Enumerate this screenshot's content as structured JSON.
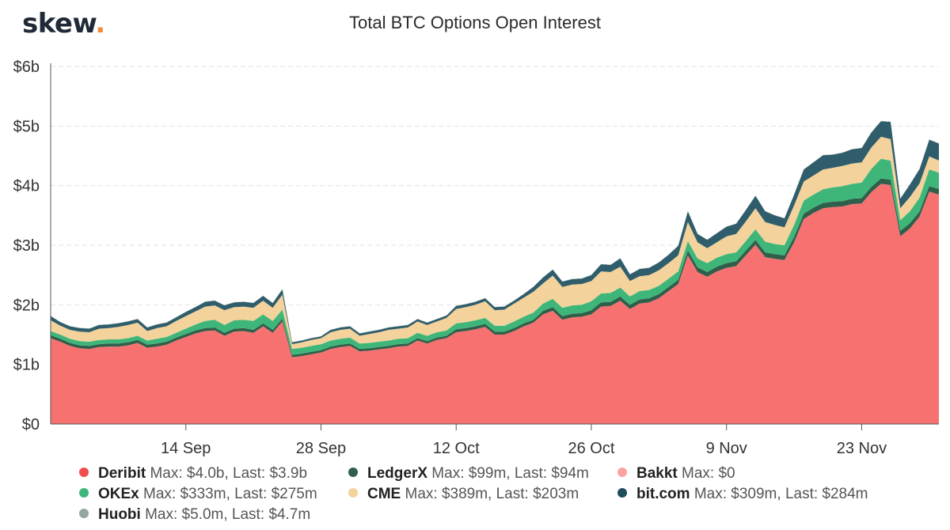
{
  "logo": {
    "text": "skew",
    "dot": "."
  },
  "chart_data": {
    "type": "area",
    "stacked": true,
    "title": "Total BTC Options Open Interest",
    "xlabel": "",
    "ylabel": "",
    "ylim": [
      0,
      6
    ],
    "y_unit": "$b",
    "y_ticks": [
      {
        "value": 0,
        "label": "$0"
      },
      {
        "value": 1,
        "label": "$1b"
      },
      {
        "value": 2,
        "label": "$2b"
      },
      {
        "value": 3,
        "label": "$3b"
      },
      {
        "value": 4,
        "label": "$4b"
      },
      {
        "value": 5,
        "label": "$5b"
      },
      {
        "value": 6,
        "label": "$6b"
      }
    ],
    "x_range": [
      "2020-08-31",
      "2020-12-01"
    ],
    "x_ticks": [
      {
        "date": "2020-09-14",
        "label": "14 Sep"
      },
      {
        "date": "2020-09-28",
        "label": "28 Sep"
      },
      {
        "date": "2020-10-12",
        "label": "12 Oct"
      },
      {
        "date": "2020-10-26",
        "label": "26 Oct"
      },
      {
        "date": "2020-11-09",
        "label": "9 Nov"
      },
      {
        "date": "2020-11-23",
        "label": "23 Nov"
      }
    ],
    "grid": {
      "horizontal": true,
      "vertical": false
    },
    "legend_position": "bottom",
    "x": [
      "2020-08-31",
      "2020-09-01",
      "2020-09-02",
      "2020-09-03",
      "2020-09-04",
      "2020-09-05",
      "2020-09-06",
      "2020-09-07",
      "2020-09-08",
      "2020-09-09",
      "2020-09-10",
      "2020-09-11",
      "2020-09-12",
      "2020-09-13",
      "2020-09-14",
      "2020-09-15",
      "2020-09-16",
      "2020-09-17",
      "2020-09-18",
      "2020-09-19",
      "2020-09-20",
      "2020-09-21",
      "2020-09-22",
      "2020-09-23",
      "2020-09-24",
      "2020-09-25",
      "2020-09-26",
      "2020-09-27",
      "2020-09-28",
      "2020-09-29",
      "2020-09-30",
      "2020-10-01",
      "2020-10-02",
      "2020-10-03",
      "2020-10-04",
      "2020-10-05",
      "2020-10-06",
      "2020-10-07",
      "2020-10-08",
      "2020-10-09",
      "2020-10-10",
      "2020-10-11",
      "2020-10-12",
      "2020-10-13",
      "2020-10-14",
      "2020-10-15",
      "2020-10-16",
      "2020-10-17",
      "2020-10-18",
      "2020-10-19",
      "2020-10-20",
      "2020-10-21",
      "2020-10-22",
      "2020-10-23",
      "2020-10-24",
      "2020-10-25",
      "2020-10-26",
      "2020-10-27",
      "2020-10-28",
      "2020-10-29",
      "2020-10-30",
      "2020-10-31",
      "2020-11-01",
      "2020-11-02",
      "2020-11-03",
      "2020-11-04",
      "2020-11-05",
      "2020-11-06",
      "2020-11-07",
      "2020-11-08",
      "2020-11-09",
      "2020-11-10",
      "2020-11-11",
      "2020-11-12",
      "2020-11-13",
      "2020-11-14",
      "2020-11-15",
      "2020-11-16",
      "2020-11-17",
      "2020-11-18",
      "2020-11-19",
      "2020-11-20",
      "2020-11-21",
      "2020-11-22",
      "2020-11-23",
      "2020-11-24",
      "2020-11-25",
      "2020-11-26",
      "2020-11-27",
      "2020-11-28",
      "2020-11-29",
      "2020-11-30",
      "2020-12-01"
    ],
    "series": [
      {
        "name": "Deribit",
        "color": "#f87171",
        "values": [
          1.44,
          1.38,
          1.31,
          1.27,
          1.26,
          1.29,
          1.3,
          1.3,
          1.32,
          1.36,
          1.28,
          1.3,
          1.33,
          1.4,
          1.46,
          1.52,
          1.56,
          1.57,
          1.48,
          1.55,
          1.56,
          1.53,
          1.64,
          1.53,
          1.72,
          1.12,
          1.14,
          1.17,
          1.2,
          1.26,
          1.29,
          1.31,
          1.22,
          1.23,
          1.25,
          1.27,
          1.3,
          1.31,
          1.4,
          1.35,
          1.41,
          1.44,
          1.54,
          1.56,
          1.59,
          1.63,
          1.5,
          1.5,
          1.56,
          1.64,
          1.7,
          1.84,
          1.9,
          1.75,
          1.79,
          1.8,
          1.84,
          1.97,
          1.98,
          2.07,
          1.93,
          2.02,
          2.04,
          2.11,
          2.23,
          2.35,
          2.83,
          2.55,
          2.47,
          2.56,
          2.62,
          2.65,
          2.83,
          3.01,
          2.8,
          2.77,
          2.75,
          3.05,
          3.44,
          3.54,
          3.62,
          3.64,
          3.65,
          3.69,
          3.7,
          3.89,
          4.03,
          4.01,
          3.15,
          3.28,
          3.48,
          3.9,
          3.85
        ]
      },
      {
        "name": "LedgerX",
        "color": "#2f5f4a",
        "values": [
          0.05,
          0.05,
          0.05,
          0.05,
          0.05,
          0.05,
          0.05,
          0.05,
          0.05,
          0.05,
          0.05,
          0.05,
          0.05,
          0.05,
          0.05,
          0.05,
          0.05,
          0.05,
          0.05,
          0.05,
          0.05,
          0.05,
          0.05,
          0.05,
          0.05,
          0.04,
          0.04,
          0.04,
          0.04,
          0.04,
          0.04,
          0.04,
          0.04,
          0.04,
          0.04,
          0.04,
          0.04,
          0.04,
          0.04,
          0.04,
          0.04,
          0.04,
          0.05,
          0.05,
          0.05,
          0.05,
          0.05,
          0.05,
          0.05,
          0.05,
          0.05,
          0.06,
          0.06,
          0.06,
          0.06,
          0.06,
          0.07,
          0.07,
          0.07,
          0.07,
          0.07,
          0.07,
          0.07,
          0.07,
          0.07,
          0.07,
          0.08,
          0.08,
          0.08,
          0.08,
          0.08,
          0.08,
          0.08,
          0.08,
          0.08,
          0.08,
          0.08,
          0.09,
          0.09,
          0.09,
          0.09,
          0.09,
          0.09,
          0.09,
          0.09,
          0.09,
          0.09,
          0.09,
          0.09,
          0.09,
          0.09,
          0.09,
          0.094
        ]
      },
      {
        "name": "Bakkt",
        "color": "#f9a3a3",
        "values": [
          0,
          0,
          0,
          0,
          0,
          0,
          0,
          0,
          0,
          0,
          0,
          0,
          0,
          0,
          0,
          0,
          0,
          0,
          0,
          0,
          0,
          0,
          0,
          0,
          0,
          0,
          0,
          0,
          0,
          0,
          0,
          0,
          0,
          0,
          0,
          0,
          0,
          0,
          0,
          0,
          0,
          0,
          0,
          0,
          0,
          0,
          0,
          0,
          0,
          0,
          0,
          0,
          0,
          0,
          0,
          0,
          0,
          0,
          0,
          0,
          0,
          0,
          0,
          0,
          0,
          0,
          0,
          0,
          0,
          0,
          0,
          0,
          0,
          0,
          0,
          0,
          0,
          0,
          0,
          0,
          0,
          0,
          0,
          0,
          0,
          0,
          0,
          0,
          0,
          0,
          0,
          0,
          0
        ]
      },
      {
        "name": "OKEx",
        "color": "#3eb67a",
        "values": [
          0.07,
          0.07,
          0.07,
          0.07,
          0.07,
          0.07,
          0.07,
          0.07,
          0.07,
          0.07,
          0.07,
          0.08,
          0.08,
          0.08,
          0.09,
          0.1,
          0.12,
          0.13,
          0.13,
          0.14,
          0.14,
          0.15,
          0.15,
          0.15,
          0.15,
          0.1,
          0.1,
          0.1,
          0.1,
          0.1,
          0.1,
          0.1,
          0.09,
          0.09,
          0.09,
          0.09,
          0.09,
          0.09,
          0.09,
          0.09,
          0.09,
          0.09,
          0.1,
          0.1,
          0.1,
          0.1,
          0.1,
          0.1,
          0.11,
          0.11,
          0.12,
          0.12,
          0.14,
          0.14,
          0.14,
          0.14,
          0.15,
          0.15,
          0.15,
          0.15,
          0.14,
          0.14,
          0.14,
          0.14,
          0.14,
          0.14,
          0.16,
          0.15,
          0.15,
          0.15,
          0.15,
          0.15,
          0.16,
          0.18,
          0.18,
          0.17,
          0.17,
          0.2,
          0.22,
          0.22,
          0.23,
          0.24,
          0.25,
          0.25,
          0.26,
          0.3,
          0.33,
          0.32,
          0.18,
          0.2,
          0.23,
          0.28,
          0.275
        ]
      },
      {
        "name": "CME",
        "color": "#f3d29b",
        "values": [
          0.18,
          0.15,
          0.15,
          0.16,
          0.16,
          0.19,
          0.19,
          0.21,
          0.22,
          0.22,
          0.16,
          0.18,
          0.18,
          0.2,
          0.21,
          0.22,
          0.24,
          0.24,
          0.25,
          0.22,
          0.22,
          0.22,
          0.23,
          0.22,
          0.25,
          0.08,
          0.09,
          0.1,
          0.1,
          0.14,
          0.15,
          0.15,
          0.13,
          0.15,
          0.16,
          0.18,
          0.17,
          0.18,
          0.19,
          0.18,
          0.18,
          0.21,
          0.24,
          0.25,
          0.26,
          0.28,
          0.26,
          0.27,
          0.3,
          0.32,
          0.35,
          0.34,
          0.39,
          0.35,
          0.35,
          0.35,
          0.34,
          0.37,
          0.35,
          0.35,
          0.26,
          0.25,
          0.25,
          0.26,
          0.26,
          0.27,
          0.32,
          0.27,
          0.25,
          0.26,
          0.3,
          0.31,
          0.33,
          0.35,
          0.33,
          0.32,
          0.3,
          0.33,
          0.32,
          0.32,
          0.33,
          0.33,
          0.34,
          0.34,
          0.34,
          0.36,
          0.37,
          0.36,
          0.2,
          0.24,
          0.24,
          0.22,
          0.203
        ]
      },
      {
        "name": "bit.com",
        "color": "#2f5d6b",
        "values": [
          0.07,
          0.06,
          0.06,
          0.06,
          0.06,
          0.06,
          0.06,
          0.06,
          0.06,
          0.06,
          0.06,
          0.06,
          0.06,
          0.06,
          0.07,
          0.07,
          0.08,
          0.08,
          0.08,
          0.08,
          0.08,
          0.08,
          0.08,
          0.08,
          0.09,
          0.03,
          0.03,
          0.03,
          0.03,
          0.04,
          0.04,
          0.04,
          0.04,
          0.04,
          0.04,
          0.04,
          0.04,
          0.04,
          0.04,
          0.04,
          0.04,
          0.04,
          0.05,
          0.05,
          0.05,
          0.05,
          0.05,
          0.05,
          0.05,
          0.06,
          0.08,
          0.1,
          0.1,
          0.09,
          0.09,
          0.09,
          0.1,
          0.12,
          0.12,
          0.14,
          0.11,
          0.12,
          0.12,
          0.13,
          0.14,
          0.16,
          0.18,
          0.14,
          0.14,
          0.15,
          0.16,
          0.17,
          0.19,
          0.21,
          0.18,
          0.16,
          0.15,
          0.18,
          0.2,
          0.22,
          0.24,
          0.22,
          0.22,
          0.24,
          0.24,
          0.25,
          0.26,
          0.29,
          0.16,
          0.21,
          0.24,
          0.28,
          0.284
        ]
      },
      {
        "name": "Huobi",
        "color": "#95a5a0",
        "values": [
          0.004,
          0.004,
          0.004,
          0.004,
          0.004,
          0.004,
          0.004,
          0.004,
          0.004,
          0.004,
          0.004,
          0.004,
          0.004,
          0.004,
          0.004,
          0.004,
          0.004,
          0.004,
          0.004,
          0.004,
          0.004,
          0.004,
          0.004,
          0.004,
          0.004,
          0.004,
          0.004,
          0.004,
          0.004,
          0.004,
          0.004,
          0.004,
          0.004,
          0.004,
          0.004,
          0.004,
          0.004,
          0.004,
          0.004,
          0.004,
          0.004,
          0.004,
          0.004,
          0.004,
          0.004,
          0.004,
          0.004,
          0.004,
          0.004,
          0.004,
          0.004,
          0.004,
          0.004,
          0.004,
          0.004,
          0.004,
          0.004,
          0.004,
          0.004,
          0.004,
          0.004,
          0.004,
          0.004,
          0.004,
          0.004,
          0.004,
          0.004,
          0.004,
          0.004,
          0.004,
          0.004,
          0.004,
          0.004,
          0.004,
          0.004,
          0.004,
          0.004,
          0.004,
          0.004,
          0.004,
          0.004,
          0.004,
          0.004,
          0.004,
          0.004,
          0.004,
          0.004,
          0.004,
          0.004,
          0.004,
          0.004,
          0.0047,
          0.0047
        ]
      }
    ]
  },
  "legend": [
    {
      "name": "Deribit",
      "stats": "Max: $4.0b, Last: $3.9b",
      "color": "#f04d4d",
      "col": 0,
      "row": 0
    },
    {
      "name": "LedgerX",
      "stats": "Max: $99m, Last: $94m",
      "color": "#2f5f4a",
      "col": 1,
      "row": 0
    },
    {
      "name": "Bakkt",
      "stats": "Max: $0",
      "color": "#f9a3a3",
      "col": 2,
      "row": 0
    },
    {
      "name": "OKEx",
      "stats": "Max: $333m, Last: $275m",
      "color": "#3eb67a",
      "col": 0,
      "row": 1
    },
    {
      "name": "CME",
      "stats": "Max: $389m, Last: $203m",
      "color": "#f3d29b",
      "col": 1,
      "row": 1
    },
    {
      "name": "bit.com",
      "stats": "Max: $309m, Last: $284m",
      "color": "#1f4f5c",
      "col": 2,
      "row": 1
    },
    {
      "name": "Huobi",
      "stats": "Max: $5.0m, Last: $4.7m",
      "color": "#95a5a0",
      "col": 0,
      "row": 2
    }
  ]
}
